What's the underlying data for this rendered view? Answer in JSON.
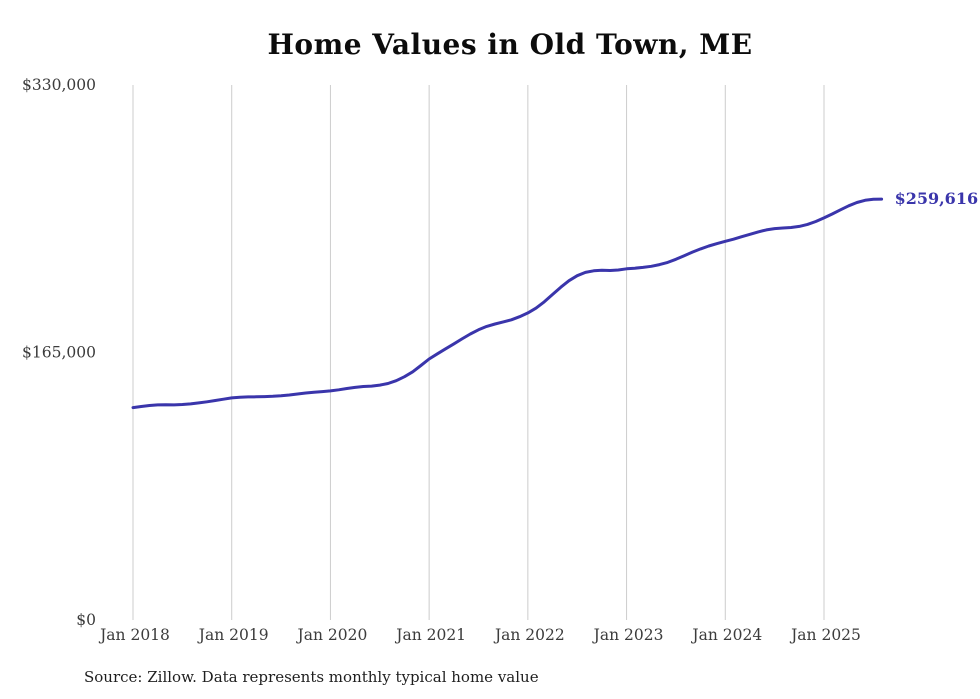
{
  "title": "Home Values in Old Town, ME",
  "end_label": "$259,616",
  "source_note": "Source: Zillow. Data represents monthly typical home value",
  "colors": {
    "line": "#3a35ab",
    "end_label": "#3a35ab",
    "grid": "#cccccc",
    "tick_text": "#3c3c3c",
    "title_text": "#0c0c0c"
  },
  "chart_data": {
    "type": "line",
    "title": "Home Values in Old Town, ME",
    "xlabel": "",
    "ylabel": "",
    "ylim": [
      0,
      330000
    ],
    "grid": "vertical-only",
    "legend": "none",
    "frequency": "monthly",
    "x_start": "2018-01",
    "x_end": "2025-08",
    "x_tick_labels": [
      "Jan 2018",
      "Jan 2019",
      "Jan 2020",
      "Jan 2021",
      "Jan 2022",
      "Jan 2023",
      "Jan 2024",
      "Jan 2025"
    ],
    "y_ticks": [
      {
        "value": 0,
        "label": "$0"
      },
      {
        "value": 165000,
        "label": "$165,000"
      },
      {
        "value": 330000,
        "label": "$330,000"
      }
    ],
    "series": [
      {
        "name": "Typical home value",
        "final_value": 259616,
        "values": [
          131000,
          131700,
          132300,
          132700,
          132800,
          132700,
          132900,
          133300,
          133900,
          134600,
          135400,
          136200,
          137000,
          137400,
          137600,
          137700,
          137800,
          138000,
          138300,
          138800,
          139400,
          140000,
          140500,
          140900,
          141300,
          142000,
          142800,
          143500,
          144000,
          144300,
          144900,
          145900,
          147600,
          150100,
          153100,
          157000,
          161000,
          164200,
          167300,
          170300,
          173400,
          176400,
          179000,
          181100,
          182600,
          183900,
          185200,
          187100,
          189400,
          192400,
          196300,
          200800,
          205300,
          209300,
          212400,
          214400,
          215400,
          215700,
          215600,
          215900,
          216600,
          217000,
          217500,
          218200,
          219200,
          220600,
          222500,
          224700,
          226900,
          228900,
          230700,
          232200,
          233600,
          234900,
          236400,
          237900,
          239400,
          240600,
          241400,
          241800,
          242100,
          242800,
          244000,
          245800,
          248000,
          250400,
          253000,
          255500,
          257500,
          258900,
          259500,
          259616
        ]
      }
    ]
  }
}
